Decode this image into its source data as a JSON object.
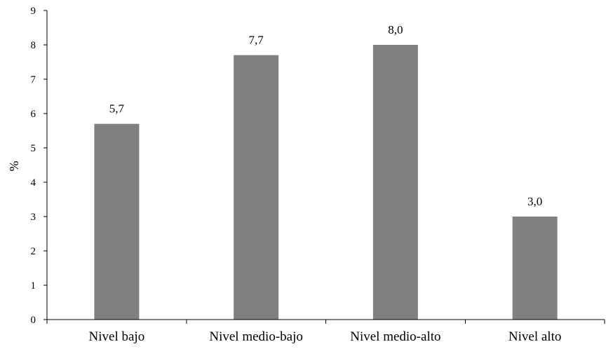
{
  "chart_data": {
    "type": "bar",
    "categories": [
      "Nivel bajo",
      "Nivel medio-bajo",
      "Nivel medio-alto",
      "Nivel alto"
    ],
    "values": [
      5.7,
      7.7,
      8.0,
      3.0
    ],
    "value_labels": [
      "5,7",
      "7,7",
      "8,0",
      "3,0"
    ],
    "ylabel": "%",
    "ylim": [
      0,
      9
    ],
    "yticks": [
      "0",
      "1",
      "2",
      "3",
      "4",
      "5",
      "6",
      "7",
      "8",
      "9"
    ],
    "grid": false,
    "legend": "none",
    "bar_color": "#808080"
  }
}
